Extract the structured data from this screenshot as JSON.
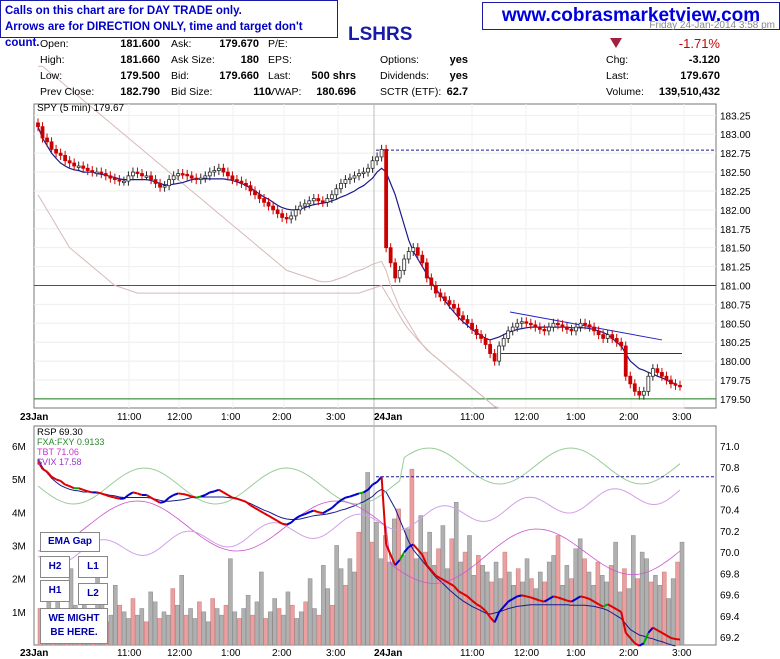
{
  "notes": {
    "line1": "Calls on this chart are for DAY TRADE only.",
    "line2": "Arrows are for DIRECTION ONLY, time and target don't count."
  },
  "website": "www.cobrasmarketview.com",
  "ticker_fragment": "LSHRS",
  "date_fragment": "Friday 24-Jan-2014 3:58 pm",
  "quote": {
    "open_label": "Open:",
    "open": "181.600",
    "high_label": "High:",
    "high": "181.660",
    "low_label": "Low:",
    "low": "179.500",
    "prev_label": "Prev Close:",
    "prev": "182.790",
    "ask_label": "Ask:",
    "ask": "179.670",
    "asksize_label": "Ask Size:",
    "asksize": "180",
    "bid_label": "Bid:",
    "bid": "179.660",
    "bidsize_label": "Bid Size:",
    "bidsize": "110",
    "pe_label": "P/E:",
    "pe": "",
    "eps_label": "EPS:",
    "eps": "",
    "last_label": "Last:",
    "last_trade": "500 shrs",
    "vwap_label": "VWAP:",
    "vwap": "180.696",
    "options_label": "Options:",
    "options": "yes",
    "dividends_label": "Dividends:",
    "dividends": "yes",
    "sctr_label": "SCTR (ETF):",
    "sctr": "62.7",
    "pct_change": "-1.71%",
    "chg_label": "Chg:",
    "chg": "-3.120",
    "last2_label": "Last:",
    "last": "179.670",
    "volume_label": "Volume:",
    "volume": "139,510,432"
  },
  "legend": {
    "spy": "SPY (5 min) 179.67",
    "rsp": "RSP 69.30",
    "fxa": "FXA:FXY 0.9133",
    "tbt": "TBT 71.06",
    "vix": "$VIX 17.58"
  },
  "annotations": {
    "ema_gap": "EMA Gap",
    "h2": "H2",
    "l1": "L1",
    "h1": "H1",
    "l2": "L2",
    "might1": "WE MIGHT",
    "might2": "BE HERE."
  },
  "colors": {
    "up": "#2a2a2a",
    "down": "#cc0000",
    "ema": "#1a1a8c",
    "ma": "#d8b8b8",
    "support": "#1a7a1a",
    "resistance": "#cc0000",
    "trend": "#2222cc",
    "rsp_up": "#0000cc",
    "rsp_down": "#dd0000",
    "rsp_green": "#00aa00",
    "fxa": "#99cc99",
    "tbt": "#cc55cc",
    "vix": "#d0a0e8",
    "vol_up": "#b0b0b0",
    "vol_down": "#eaa0a0"
  },
  "chart_data": [
    {
      "type": "line",
      "subtype": "candlestick",
      "title": "SPY (5 min) 179.67",
      "x_labels": [
        "23Jan",
        "11:00",
        "12:00",
        "1:00",
        "2:00",
        "3:00",
        "24Jan",
        "11:00",
        "12:00",
        "1:00",
        "2:00",
        "3:00"
      ],
      "y_ticks": [
        179.5,
        179.75,
        180.0,
        180.25,
        180.5,
        180.75,
        181.0,
        181.25,
        181.5,
        181.75,
        182.0,
        182.25,
        182.5,
        182.75,
        183.0,
        183.25
      ],
      "ylim": [
        179.38,
        183.4
      ],
      "close": [
        183.1,
        182.95,
        182.9,
        182.8,
        182.75,
        182.72,
        182.65,
        182.62,
        182.58,
        182.58,
        182.55,
        182.52,
        182.5,
        182.5,
        182.48,
        182.45,
        182.42,
        182.4,
        182.38,
        182.38,
        182.45,
        182.5,
        182.48,
        182.45,
        182.45,
        182.4,
        182.35,
        182.3,
        182.32,
        182.4,
        182.45,
        182.48,
        182.47,
        182.45,
        182.42,
        182.4,
        182.42,
        182.45,
        182.5,
        182.52,
        182.55,
        182.5,
        182.45,
        182.4,
        182.38,
        182.35,
        182.32,
        182.25,
        182.2,
        182.15,
        182.1,
        182.05,
        182.0,
        181.95,
        181.9,
        181.88,
        181.92,
        182.0,
        182.05,
        182.08,
        182.12,
        182.15,
        182.12,
        182.1,
        182.15,
        182.2,
        182.28,
        182.35,
        182.4,
        182.42,
        182.45,
        182.48,
        182.5,
        182.55,
        182.65,
        182.7,
        182.8,
        181.5,
        181.3,
        181.1,
        181.2,
        181.35,
        181.45,
        181.5,
        181.4,
        181.3,
        181.1,
        181.0,
        180.9,
        180.85,
        180.8,
        180.75,
        180.7,
        180.6,
        180.55,
        180.5,
        180.42,
        180.35,
        180.3,
        180.22,
        180.1,
        180.0,
        180.2,
        180.3,
        180.4,
        180.45,
        180.5,
        180.52,
        180.5,
        180.48,
        180.45,
        180.42,
        180.4,
        180.45,
        180.5,
        180.48,
        180.45,
        180.42,
        180.4,
        180.45,
        180.5,
        180.48,
        180.45,
        180.4,
        180.35,
        180.3,
        180.35,
        180.3,
        180.25,
        180.2,
        179.8,
        179.7,
        179.6,
        179.55,
        179.6,
        179.8,
        179.9,
        179.85,
        179.8,
        179.75,
        179.7,
        179.68,
        179.67
      ],
      "ema": [
        183.1,
        182.95,
        182.85,
        182.75,
        182.68,
        182.62,
        182.58,
        182.55,
        182.53,
        182.52,
        182.5,
        182.5,
        182.5,
        182.48,
        182.47,
        182.46,
        182.44,
        182.43,
        182.41,
        182.4,
        182.4,
        182.4,
        182.4,
        182.4,
        182.4,
        182.39,
        182.37,
        182.35,
        182.33,
        182.33,
        182.34,
        182.35,
        182.36,
        182.38,
        182.4,
        182.41,
        182.41,
        182.41,
        182.41,
        182.41,
        182.41,
        182.41,
        182.4,
        182.39,
        182.37,
        182.35,
        182.32,
        182.29,
        182.25,
        182.21,
        182.17,
        182.14,
        182.1,
        182.06,
        182.03,
        182.01,
        182.0,
        182.0,
        182.01,
        182.03,
        182.05,
        182.07,
        182.08,
        182.09,
        182.1,
        182.12,
        182.14,
        182.17,
        182.19,
        182.22,
        182.25,
        182.29,
        182.32,
        182.37,
        182.42,
        182.5,
        182.55,
        182.5,
        182.35,
        182.2,
        182.0,
        181.8,
        181.6,
        181.45,
        181.35,
        181.25,
        181.15,
        181.05,
        180.95,
        180.88,
        180.8,
        180.72,
        180.65,
        180.58,
        180.52,
        180.47,
        180.42,
        180.38,
        180.34,
        180.3,
        180.28,
        180.3,
        180.32,
        180.35,
        180.38,
        180.4,
        180.42,
        180.43,
        180.44,
        180.45,
        180.45,
        180.45,
        180.45,
        180.45,
        180.45,
        180.45,
        180.45,
        180.45,
        180.44,
        180.44,
        180.44,
        180.44,
        180.43,
        180.42,
        180.4,
        180.38,
        180.35,
        180.3,
        180.25,
        180.2,
        180.1,
        180.0,
        179.95,
        179.9,
        179.88,
        179.85,
        179.83,
        179.8,
        179.78,
        179.75,
        179.72,
        179.7
      ],
      "ma": [
        183.9,
        183.9,
        183.85,
        183.8,
        183.75,
        183.7,
        183.65,
        183.6,
        183.55,
        183.5,
        183.45,
        183.4,
        183.35,
        183.3,
        183.25,
        183.2,
        183.15,
        183.1,
        183.05,
        183.0,
        182.95,
        182.9,
        182.85,
        182.8,
        182.75,
        182.7,
        182.65,
        182.6,
        182.55,
        182.5,
        182.45,
        182.4,
        182.35,
        182.3,
        182.25,
        182.2,
        182.15,
        182.1,
        182.05,
        182.0,
        181.95,
        181.9,
        181.85,
        181.8,
        181.75,
        181.7,
        181.65,
        181.6,
        181.55,
        181.5,
        181.45,
        181.4,
        181.35,
        181.3,
        181.25,
        181.2,
        181.18,
        181.16,
        181.14,
        181.12,
        181.1,
        181.08,
        181.06,
        181.05,
        181.05,
        181.06,
        181.08,
        181.1,
        181.12,
        181.15,
        181.18,
        181.2,
        181.22,
        181.25,
        181.28,
        181.3,
        181.32,
        181.2,
        181.0,
        180.85,
        180.7,
        180.6,
        180.5,
        180.4,
        180.3,
        180.22,
        180.15,
        180.1,
        180.05,
        180.0,
        179.95,
        179.9,
        179.85,
        179.8,
        179.75,
        179.7,
        179.65,
        179.6,
        179.55,
        179.5,
        179.45,
        179.4,
        179.38,
        179.38,
        179.38,
        179.38,
        179.38,
        179.38,
        179.38,
        179.38,
        179.38,
        179.38,
        179.38,
        179.38,
        179.38,
        179.38,
        179.38,
        179.38,
        179.38,
        179.38,
        179.38,
        179.38,
        179.38,
        179.38,
        179.38,
        179.38,
        179.38,
        179.38,
        179.38,
        179.38,
        179.38,
        179.38,
        179.38,
        179.38,
        179.38,
        179.38,
        179.38,
        179.38,
        179.38,
        179.38,
        179.38,
        179.38
      ],
      "ma2": [
        182.2,
        182.1,
        182.0,
        181.9,
        181.8,
        181.7,
        181.6,
        181.5,
        181.45,
        181.4,
        181.35,
        181.3,
        181.25,
        181.2,
        181.15,
        181.1,
        181.05,
        181.0,
        180.98,
        180.96,
        180.94,
        180.92,
        180.9,
        180.9,
        180.9,
        180.9,
        180.9,
        180.9,
        180.9,
        180.9,
        180.9,
        180.9,
        180.9,
        180.9,
        180.9,
        180.9,
        180.9,
        180.9,
        180.9,
        180.9,
        180.9,
        180.9,
        180.9,
        180.9,
        180.9,
        180.9,
        180.9,
        180.9,
        180.9,
        180.9,
        180.9,
        180.9,
        180.9,
        180.9,
        180.9,
        180.9,
        180.9,
        180.9,
        180.9,
        180.9,
        180.9,
        180.9,
        180.9,
        180.9,
        180.9,
        180.9,
        180.9,
        180.9,
        180.9,
        180.9,
        180.9,
        180.9,
        180.92,
        180.94,
        180.96,
        180.98,
        181.0,
        180.9,
        180.8,
        180.7,
        180.6,
        180.5,
        180.42,
        180.35,
        180.28,
        180.22,
        180.16,
        180.1,
        180.05,
        180.0,
        179.95,
        179.9,
        179.85,
        179.8,
        179.75,
        179.7,
        179.65,
        179.6,
        179.55,
        179.5,
        179.45,
        179.4,
        179.38,
        179.38,
        179.38,
        179.38,
        179.38,
        179.38,
        179.38,
        179.38,
        179.38,
        179.38,
        179.38,
        179.38,
        179.38,
        179.38,
        179.38,
        179.38,
        179.38,
        179.38,
        179.38,
        179.38,
        179.38,
        179.38,
        179.38,
        179.38,
        179.38,
        179.38,
        179.38,
        179.38,
        179.38,
        179.38,
        179.38,
        179.38,
        179.38,
        179.38,
        179.38,
        179.38,
        179.38,
        179.38,
        179.38,
        179.38,
        179.38,
        179.38
      ],
      "lines": {
        "support": 179.5,
        "prev_close": 182.79,
        "level_181": 181.0,
        "level_180_1": 180.1
      }
    },
    {
      "type": "bar",
      "title": "RSP 69.30",
      "volume_ticks": [
        "1M",
        "2M",
        "3M",
        "4M",
        "5M",
        "6M"
      ],
      "right_ticks": [
        69.2,
        69.4,
        69.6,
        69.8,
        70.0,
        70.2,
        70.4,
        70.6,
        70.8,
        71.0
      ],
      "series": [
        {
          "name": "RSP 69.30",
          "type": "line"
        },
        {
          "name": "FXA:FXY 0.9133",
          "type": "line"
        },
        {
          "name": "TBT 71.06",
          "type": "line"
        },
        {
          "name": "$VIX 17.58",
          "type": "line"
        }
      ],
      "volume": [
        1.1,
        0.9,
        1.3,
        0.8,
        1.6,
        1.0,
        0.7,
        2.3,
        1.2,
        0.9,
        1.5,
        0.8,
        1.1,
        2.1,
        1.3,
        0.7,
        0.9,
        1.8,
        1.2,
        1.0,
        0.8,
        1.4,
        0.9,
        1.1,
        0.7,
        1.6,
        1.3,
        0.8,
        1.0,
        0.9,
        1.7,
        1.2,
        2.1,
        0.9,
        1.1,
        0.8,
        1.3,
        1.0,
        0.7,
        1.4,
        1.1,
        0.9,
        1.2,
        2.6,
        1.0,
        0.8,
        1.1,
        1.5,
        0.9,
        1.3,
        2.2,
        0.8,
        1.0,
        1.4,
        1.1,
        0.9,
        1.6,
        1.2,
        0.8,
        1.0,
        1.3,
        2.0,
        1.1,
        0.9,
        2.4,
        1.7,
        1.2,
        3.0,
        2.3,
        1.8,
        2.6,
        2.2,
        3.4,
        4.6,
        5.2,
        3.1,
        3.7,
        2.6,
        3.3,
        2.5,
        3.8,
        4.1,
        2.7,
        3.5,
        5.3,
        2.6,
        3.9,
        2.8,
        3.4,
        2.4,
        2.9,
        3.6,
        2.3,
        3.2,
        4.3,
        2.5,
        2.8,
        3.3,
        2.1,
        2.7,
        2.4,
        2.2,
        1.9,
        2.5,
        2.0,
        2.8,
        2.2,
        1.8,
        2.3,
        1.9,
        2.6,
        2.0,
        1.7,
        2.2,
        1.9,
        2.5,
        2.7,
        3.3,
        1.8,
        2.4,
        2.0,
        2.9,
        3.2,
        2.6,
        2.2,
        1.8,
        2.5,
        2.1,
        1.9,
        2.4,
        3.1,
        1.6,
        2.3,
        1.7,
        3.3,
        2.0,
        2.8,
        2.6,
        1.9,
        2.1,
        1.8,
        2.2,
        1.4,
        2.0,
        2.5,
        3.1
      ],
      "ylim": [
        0,
        6.6
      ]
    }
  ]
}
